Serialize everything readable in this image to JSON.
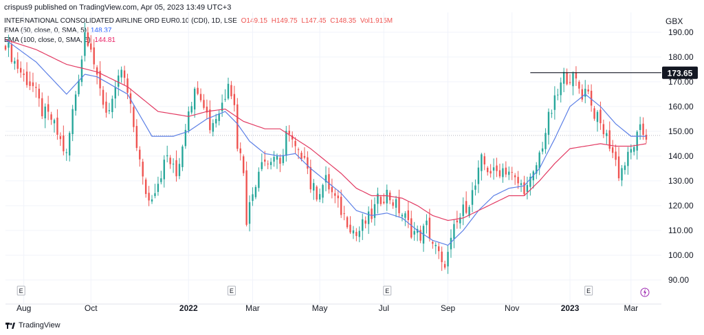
{
  "header": {
    "publisher": "crispus9 published on TradingView.com, Apr 05, 2023 13:49 UTC+3",
    "symbol": "INTERNATIONAL CONSOLIDATED AIRLINE ORD EUR0.10 (CDI), 1D, LSE",
    "ohlc": {
      "o": "O149.15",
      "h": "H149.75",
      "l": "L147.45",
      "c": "C148.35",
      "vol": "Vol1.915M"
    },
    "ema50_label": "EMA (50, close, 0, SMA, 5)",
    "ema50_value": "148.37",
    "ema100_label": "EMA (100, close, 0, SMA, 5)",
    "ema100_value": "144.81",
    "currency": "GBX"
  },
  "footer": {
    "brand": "TradingView"
  },
  "colors": {
    "up": "#26a69a",
    "down": "#ef5350",
    "ema50": "#5b7fe6",
    "ema100": "#e23a62",
    "grid": "#f0f3fa",
    "text": "#131722"
  },
  "chart_data": {
    "type": "candlestick",
    "ylim": [
      85,
      198
    ],
    "yticks": [
      90,
      100,
      110,
      120,
      130,
      140,
      150,
      160,
      170,
      180,
      190
    ],
    "yaxis_labels": [
      "90.00",
      "100.00",
      "110.00",
      "120.00",
      "130.00",
      "140.00",
      "150.00",
      "160.00",
      "170.00",
      "180.00",
      "190.00"
    ],
    "xaxis_labels": [
      "Aug",
      "Oct",
      "2022",
      "Mar",
      "May",
      "Jul",
      "Sep",
      "Nov",
      "2023",
      "Mar"
    ],
    "resistance_level": 173.65,
    "resistance_label": "173.65",
    "last_close": 148.35,
    "event_markers": [
      "E",
      "E",
      "E",
      "E"
    ],
    "series": [
      {
        "name": "Price",
        "anchors": [
          [
            0,
            186
          ],
          [
            3,
            178
          ],
          [
            6,
            172
          ],
          [
            9,
            168
          ],
          [
            12,
            158
          ],
          [
            15,
            155
          ],
          [
            18,
            146
          ],
          [
            20,
            140
          ],
          [
            22,
            158
          ],
          [
            25,
            180
          ],
          [
            26,
            190
          ],
          [
            28,
            185
          ],
          [
            30,
            170
          ],
          [
            33,
            158
          ],
          [
            36,
            165
          ],
          [
            38,
            175
          ],
          [
            40,
            165
          ],
          [
            42,
            152
          ],
          [
            43,
            145
          ],
          [
            45,
            130
          ],
          [
            47,
            122
          ],
          [
            50,
            130
          ],
          [
            53,
            140
          ],
          [
            56,
            132
          ],
          [
            58,
            145
          ],
          [
            60,
            160
          ],
          [
            63,
            168
          ],
          [
            65,
            162
          ],
          [
            67,
            152
          ],
          [
            70,
            158
          ],
          [
            72,
            165
          ],
          [
            73,
            172
          ],
          [
            75,
            160
          ],
          [
            76,
            145
          ],
          [
            78,
            135
          ],
          [
            79,
            115
          ],
          [
            80,
            120
          ],
          [
            82,
            130
          ],
          [
            84,
            140
          ],
          [
            86,
            137
          ],
          [
            88,
            140
          ],
          [
            90,
            135
          ],
          [
            92,
            150
          ],
          [
            94,
            145
          ],
          [
            96,
            140
          ],
          [
            98,
            142
          ],
          [
            100,
            128
          ],
          [
            102,
            125
          ],
          [
            105,
            130
          ],
          [
            107,
            125
          ],
          [
            110,
            118
          ],
          [
            113,
            112
          ],
          [
            115,
            108
          ],
          [
            117,
            112
          ],
          [
            120,
            116
          ],
          [
            122,
            122
          ],
          [
            125,
            125
          ],
          [
            128,
            120
          ],
          [
            131,
            115
          ],
          [
            133,
            110
          ],
          [
            136,
            108
          ],
          [
            138,
            112
          ],
          [
            140,
            105
          ],
          [
            142,
            100
          ],
          [
            143,
            95
          ],
          [
            145,
            100
          ],
          [
            147,
            110
          ],
          [
            150,
            118
          ],
          [
            152,
            122
          ],
          [
            154,
            128
          ],
          [
            156,
            138
          ],
          [
            158,
            135
          ],
          [
            160,
            133
          ],
          [
            163,
            135
          ],
          [
            165,
            134
          ],
          [
            167,
            130
          ],
          [
            169,
            128
          ],
          [
            171,
            127
          ],
          [
            173,
            132
          ],
          [
            176,
            145
          ],
          [
            178,
            155
          ],
          [
            181,
            165
          ],
          [
            183,
            172
          ],
          [
            185,
            172
          ],
          [
            187,
            170
          ],
          [
            189,
            165
          ],
          [
            191,
            168
          ],
          [
            192,
            160
          ],
          [
            194,
            155
          ],
          [
            196,
            150
          ],
          [
            198,
            145
          ],
          [
            200,
            138
          ],
          [
            201,
            133
          ],
          [
            203,
            137
          ],
          [
            205,
            142
          ],
          [
            206,
            145
          ],
          [
            208,
            150
          ],
          [
            210,
            148
          ]
        ],
        "count": 211
      },
      {
        "name": "EMA 50",
        "values": [
          [
            0,
            187
          ],
          [
            10,
            178
          ],
          [
            20,
            165
          ],
          [
            26,
            173
          ],
          [
            30,
            172
          ],
          [
            40,
            165
          ],
          [
            48,
            148
          ],
          [
            55,
            148
          ],
          [
            60,
            150
          ],
          [
            66,
            155
          ],
          [
            72,
            158
          ],
          [
            76,
            153
          ],
          [
            80,
            146
          ],
          [
            85,
            141
          ],
          [
            90,
            140
          ],
          [
            95,
            141
          ],
          [
            100,
            135
          ],
          [
            105,
            130
          ],
          [
            110,
            125
          ],
          [
            115,
            118
          ],
          [
            120,
            116
          ],
          [
            125,
            117
          ],
          [
            130,
            115
          ],
          [
            135,
            110
          ],
          [
            140,
            106
          ],
          [
            145,
            104
          ],
          [
            150,
            110
          ],
          [
            155,
            118
          ],
          [
            160,
            124
          ],
          [
            165,
            127
          ],
          [
            170,
            128
          ],
          [
            175,
            135
          ],
          [
            180,
            147
          ],
          [
            185,
            160
          ],
          [
            190,
            165
          ],
          [
            195,
            160
          ],
          [
            200,
            153
          ],
          [
            205,
            148
          ],
          [
            210,
            148
          ]
        ]
      },
      {
        "name": "EMA 100",
        "values": [
          [
            0,
            187
          ],
          [
            10,
            183
          ],
          [
            20,
            177
          ],
          [
            30,
            174
          ],
          [
            40,
            168
          ],
          [
            50,
            158
          ],
          [
            60,
            156
          ],
          [
            66,
            158
          ],
          [
            72,
            159
          ],
          [
            78,
            154
          ],
          [
            85,
            151
          ],
          [
            90,
            151
          ],
          [
            95,
            147
          ],
          [
            100,
            143
          ],
          [
            105,
            138
          ],
          [
            110,
            133
          ],
          [
            115,
            127
          ],
          [
            120,
            124
          ],
          [
            125,
            124
          ],
          [
            130,
            123
          ],
          [
            135,
            120
          ],
          [
            140,
            116
          ],
          [
            145,
            114
          ],
          [
            150,
            115
          ],
          [
            155,
            118
          ],
          [
            160,
            121
          ],
          [
            165,
            124
          ],
          [
            170,
            124
          ],
          [
            175,
            130
          ],
          [
            180,
            137
          ],
          [
            185,
            143
          ],
          [
            190,
            144
          ],
          [
            195,
            145
          ],
          [
            200,
            144
          ],
          [
            205,
            144
          ],
          [
            210,
            145
          ]
        ]
      }
    ]
  }
}
